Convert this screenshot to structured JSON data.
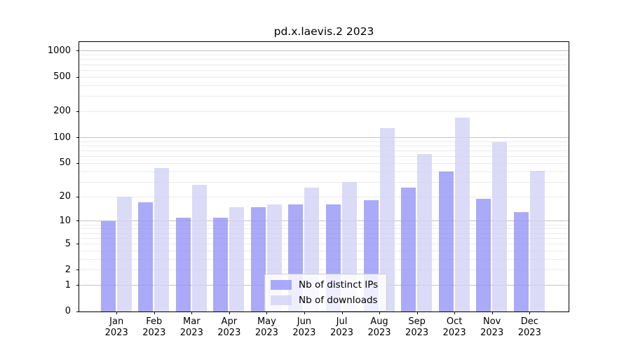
{
  "chart_data": {
    "type": "bar",
    "title": "pd.x.laevis.2 2023",
    "categories": [
      "Jan",
      "Feb",
      "Mar",
      "Apr",
      "May",
      "Jun",
      "Jul",
      "Aug",
      "Sep",
      "Oct",
      "Nov",
      "Dec"
    ],
    "year": "2023",
    "series": [
      {
        "name": "Nb of distinct IPs",
        "color": "#9595f6",
        "values": [
          10,
          17,
          11,
          11,
          15,
          16,
          16,
          18,
          26,
          40,
          19,
          13
        ]
      },
      {
        "name": "Nb of downloads",
        "color": "#d2d2f6",
        "values": [
          20,
          44,
          28,
          15,
          16,
          26,
          30,
          130,
          64,
          170,
          88,
          41
        ]
      }
    ],
    "y_scale": "log10(1+v)",
    "y_ticks": [
      0,
      1,
      2,
      5,
      10,
      20,
      50,
      100,
      200,
      500,
      1000
    ],
    "y_major_gridlines": [
      1,
      10,
      100,
      1000
    ],
    "ylim": [
      0,
      1250
    ],
    "xlabel": "",
    "ylabel": "",
    "grid": "horizontal major+minor",
    "legend_position": "inside bottom-center",
    "bar_opacity": 0.8,
    "colors": {
      "background": "#ffffff",
      "axis": "#000000",
      "grid_major": "#c4c4c4",
      "grid_minor": "#ebebeb",
      "legend_border": "#cccccc"
    }
  }
}
